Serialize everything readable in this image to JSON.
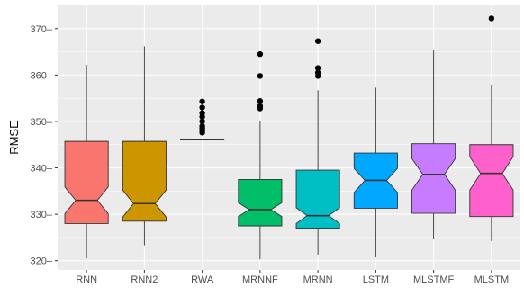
{
  "chart_data": {
    "type": "boxplot",
    "title": "",
    "xlabel": "",
    "ylabel": "RMSE",
    "ylim": [
      318,
      375
    ],
    "yticks": [
      320,
      330,
      340,
      350,
      360,
      370
    ],
    "grid": true,
    "legend": "none",
    "notched": true,
    "background_color": "#EBEBEB",
    "gridline_color": "#FFFFFF",
    "categories": [
      "RNN",
      "RNN2",
      "RWA",
      "MRNNF",
      "MRNN",
      "LSTM",
      "MLSTMF",
      "MLSTM"
    ],
    "boxes": [
      {
        "name": "RNN",
        "color": "#F8766D",
        "whisker_low": 320.5,
        "q1": 328.0,
        "median": 333.0,
        "q3": 345.7,
        "whisker_high": 362.2,
        "notch_low": 330.1,
        "notch_high": 335.9,
        "outliers": []
      },
      {
        "name": "RNN2",
        "color": "#CD9600",
        "whisker_low": 323.3,
        "q1": 328.5,
        "median": 332.3,
        "q3": 345.7,
        "whisker_high": 366.2,
        "notch_low": 329.4,
        "notch_high": 335.2,
        "outliers": []
      },
      {
        "name": "RWA",
        "color": "#7CAE00",
        "whisker_low": 346.0,
        "q1": 346.0,
        "median": 346.1,
        "q3": 346.2,
        "whisker_high": 346.3,
        "notch_low": 346.05,
        "notch_high": 346.15,
        "outliers": [
          347.6,
          348.0,
          348.5,
          349.0,
          350.0,
          351.0,
          351.8,
          353.0,
          354.3
        ]
      },
      {
        "name": "MRNNF",
        "color": "#00BE67",
        "whisker_low": 320.3,
        "q1": 327.5,
        "median": 331.0,
        "q3": 337.5,
        "whisker_high": 350.0,
        "notch_low": 329.5,
        "notch_high": 332.5,
        "outliers": [
          352.8,
          353.3,
          354.4,
          359.8,
          364.5
        ]
      },
      {
        "name": "MRNN",
        "color": "#00BFC4",
        "whisker_low": 321.3,
        "q1": 327.0,
        "median": 329.7,
        "q3": 339.5,
        "whisker_high": 356.7,
        "notch_low": 328.0,
        "notch_high": 331.4,
        "outliers": [
          359.8,
          360.5,
          361.5,
          367.3
        ]
      },
      {
        "name": "LSTM",
        "color": "#00A9FF",
        "whisker_low": 320.8,
        "q1": 331.3,
        "median": 337.3,
        "q3": 343.2,
        "whisker_high": 357.3,
        "notch_low": 334.7,
        "notch_high": 339.9,
        "outliers": []
      },
      {
        "name": "MLSTMF",
        "color": "#C77CFF",
        "whisker_low": 324.6,
        "q1": 330.2,
        "median": 338.6,
        "q3": 345.2,
        "whisker_high": 365.3,
        "notch_low": 335.2,
        "notch_high": 342.0,
        "outliers": []
      },
      {
        "name": "MLSTM",
        "color": "#FF61CC",
        "whisker_low": 324.2,
        "q1": 329.5,
        "median": 338.8,
        "q3": 345.0,
        "whisker_high": 357.8,
        "notch_low": 335.2,
        "notch_high": 342.4,
        "outliers": [
          372.2
        ]
      }
    ]
  }
}
